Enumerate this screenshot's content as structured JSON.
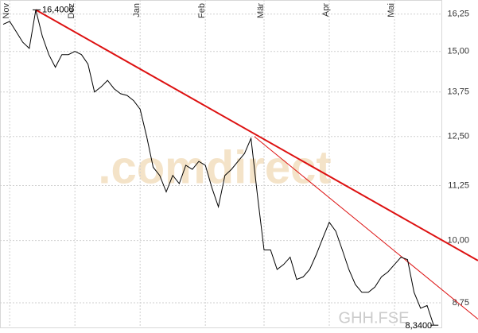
{
  "chart_data": {
    "type": "line",
    "color": "#000000",
    "log_scale": true,
    "grid": true,
    "symbol": "GHH.FSE",
    "watermark": ".comdirect",
    "categories": [
      null,
      "Nov",
      null,
      null,
      null,
      null,
      null,
      null,
      null,
      null,
      null,
      "Dez",
      null,
      null,
      null,
      null,
      null,
      null,
      null,
      null,
      null,
      "Jan",
      null,
      null,
      null,
      null,
      null,
      null,
      null,
      null,
      null,
      "Feb",
      null,
      null,
      null,
      null,
      null,
      null,
      null,
      null,
      "Mär",
      null,
      null,
      null,
      null,
      null,
      null,
      null,
      null,
      null,
      "Apr",
      null,
      null,
      null,
      null,
      null,
      null,
      null,
      null,
      null,
      "Mai",
      null,
      null,
      null,
      null,
      null,
      null
    ],
    "values": [
      15.9,
      16.0,
      15.65,
      15.3,
      15.1,
      16.4,
      15.5,
      14.9,
      14.5,
      14.9,
      14.9,
      15.0,
      14.9,
      14.6,
      13.75,
      13.9,
      14.1,
      13.85,
      13.7,
      13.65,
      13.5,
      13.25,
      12.5,
      11.7,
      11.5,
      11.1,
      11.5,
      11.3,
      11.75,
      11.65,
      11.85,
      11.75,
      11.2,
      10.75,
      11.5,
      11.65,
      11.85,
      12.05,
      12.45,
      11.0,
      9.8,
      9.8,
      9.4,
      9.5,
      9.65,
      9.2,
      9.25,
      9.4,
      9.7,
      10.05,
      10.4,
      10.2,
      9.8,
      9.4,
      9.1,
      8.95,
      8.95,
      9.05,
      9.25,
      9.35,
      9.5,
      9.65,
      9.6,
      8.95,
      8.65,
      8.7,
      8.34
    ],
    "value_labels": [
      null,
      null,
      null,
      null,
      null,
      "16,4000",
      null,
      null,
      null,
      null,
      null,
      null,
      null,
      null,
      null,
      null,
      null,
      null,
      null,
      null,
      null,
      null,
      null,
      null,
      null,
      null,
      null,
      null,
      null,
      null,
      null,
      null,
      null,
      null,
      null,
      null,
      null,
      null,
      null,
      null,
      null,
      null,
      null,
      null,
      null,
      null,
      null,
      null,
      null,
      null,
      null,
      null,
      null,
      null,
      null,
      null,
      null,
      null,
      null,
      null,
      null,
      null,
      null,
      null,
      null,
      null,
      "8,3400"
    ],
    "trendlines": [
      {
        "color": "#dd1111",
        "width": 2,
        "x": [
          5,
          72.8
        ],
        "values": [
          16.4,
          9.58
        ]
      },
      {
        "color": "#dd1111",
        "width": 1,
        "x": [
          38.5,
          72.8
        ],
        "values": [
          12.5,
          8.45
        ]
      }
    ],
    "ylim": [
      8.3,
      16.75
    ],
    "yticks": [
      {
        "value": 16.25,
        "label": "16,25"
      },
      {
        "value": 15,
        "label": "15,00"
      },
      {
        "value": 13.75,
        "label": "13,75"
      },
      {
        "value": 12.5,
        "label": "12,50"
      },
      {
        "value": 11.25,
        "label": "11,25"
      },
      {
        "value": 10,
        "label": "10,00"
      },
      {
        "value": 8.75,
        "label": "8,75"
      }
    ]
  }
}
